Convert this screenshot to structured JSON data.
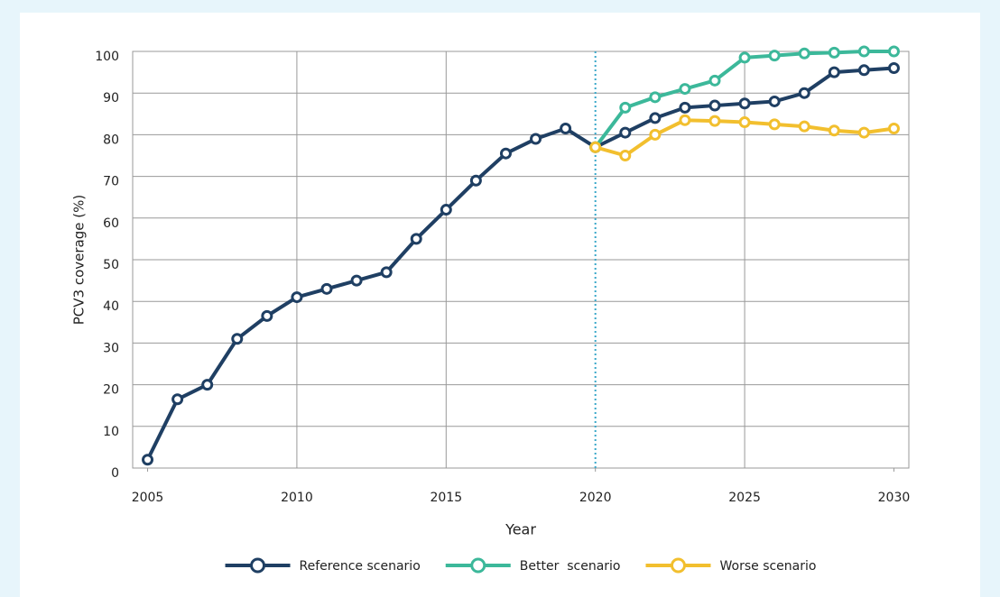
{
  "chart_data": {
    "type": "line",
    "x_label": "Year",
    "y_label": "PCV3 coverage (%)",
    "x": [
      2005,
      2006,
      2007,
      2008,
      2009,
      2010,
      2011,
      2012,
      2013,
      2014,
      2015,
      2016,
      2017,
      2018,
      2019,
      2020,
      2021,
      2022,
      2023,
      2024,
      2025,
      2026,
      2027,
      2028,
      2029,
      2030
    ],
    "series": [
      {
        "name": "Reference scenario",
        "color": "#1f3f63",
        "values": [
          2,
          16.5,
          20,
          31,
          36.5,
          41,
          43,
          45,
          47,
          55,
          62,
          69,
          75.5,
          79,
          81.5,
          77,
          80.5,
          84,
          86.5,
          87,
          87.5,
          88,
          90,
          95,
          95.5,
          96
        ]
      },
      {
        "name": "Better  scenario",
        "color": "#3cb89a",
        "values": [
          null,
          null,
          null,
          null,
          null,
          null,
          null,
          null,
          null,
          null,
          null,
          null,
          null,
          null,
          null,
          77,
          86.5,
          89,
          91,
          93,
          98.5,
          99,
          99.5,
          99.7,
          100,
          100
        ]
      },
      {
        "name": "Worse scenario",
        "color": "#f2bf2e",
        "values": [
          null,
          null,
          null,
          null,
          null,
          null,
          null,
          null,
          null,
          null,
          null,
          null,
          null,
          null,
          null,
          77,
          75,
          80,
          83.5,
          83.3,
          83,
          82.5,
          82,
          81,
          80.5,
          81.5
        ]
      }
    ],
    "xlim": [
      2004.5,
      2030.5
    ],
    "xticks": [
      2005,
      2010,
      2015,
      2020,
      2025,
      2030
    ],
    "ylim": [
      0,
      100
    ],
    "yticks": [
      0,
      10,
      20,
      30,
      40,
      50,
      60,
      70,
      80,
      90,
      100
    ],
    "grid": true,
    "vline": 2020,
    "vline_color": "#3aa8c9",
    "legend": "bottom"
  }
}
